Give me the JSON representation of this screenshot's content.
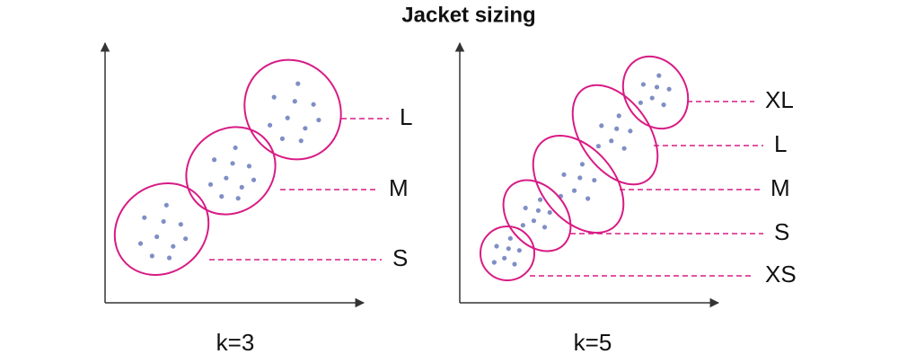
{
  "title": "Jacket sizing",
  "panels": [
    {
      "caption": "k=3",
      "clusters": [
        "L",
        "M",
        "S"
      ]
    },
    {
      "caption": "k=5",
      "clusters": [
        "XL",
        "L",
        "M",
        "S",
        "XS"
      ]
    }
  ]
}
